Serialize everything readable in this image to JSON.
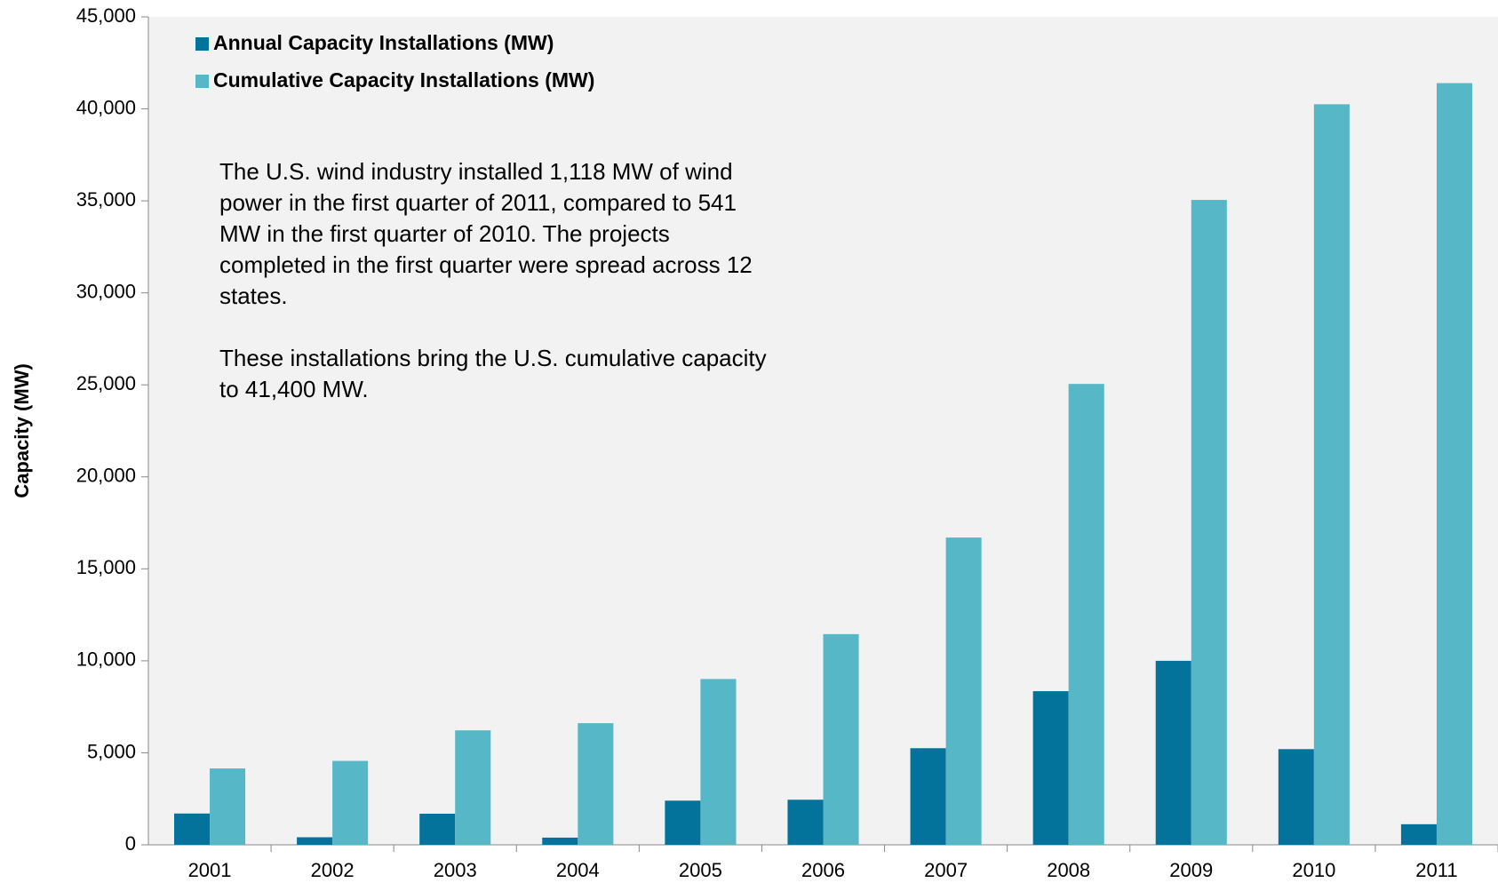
{
  "chart_data": {
    "type": "bar",
    "y_label": "Capacity (MW)",
    "categories": [
      "2001",
      "2002",
      "2003",
      "2004",
      "2005",
      "2006",
      "2007",
      "2008",
      "2009",
      "2010",
      "2011"
    ],
    "series": [
      {
        "name": "Annual Capacity Installations (MW)",
        "color": "#03739c",
        "values": [
          1700,
          410,
          1690,
          390,
          2400,
          2450,
          5250,
          8350,
          10000,
          5200,
          1118
        ]
      },
      {
        "name": "Cumulative Capacity Installations (MW)",
        "color": "#56b7c6",
        "values": [
          4150,
          4560,
          6220,
          6610,
          9010,
          11450,
          16700,
          25050,
          35050,
          40250,
          41400
        ]
      }
    ],
    "ylim": [
      0,
      45000
    ],
    "yticks": [
      0,
      {
        "value": 5000,
        "label": "5,000"
      },
      {
        "value": 10000,
        "label": "10,000"
      },
      {
        "value": 15000,
        "label": "15,000"
      },
      {
        "value": 20000,
        "label": "20,000"
      },
      {
        "value": 25000,
        "label": "25,000"
      },
      {
        "value": 30000,
        "label": "30,000"
      },
      {
        "value": 35000,
        "label": "35,000"
      },
      {
        "value": 40000,
        "label": "40,000"
      },
      {
        "value": 45000,
        "label": "45,000"
      }
    ],
    "annotation": [
      [
        "The U.S. wind industry installed 1,118 MW of wind",
        "power in the first quarter of 2011, compared to 541",
        "MW in the first quarter of 2010. The projects",
        "completed in the first quarter were spread across 12",
        "states."
      ],
      [
        "These installations bring the U.S. cumulative capacity",
        "to 41,400 MW."
      ]
    ],
    "legend": "upper left"
  }
}
